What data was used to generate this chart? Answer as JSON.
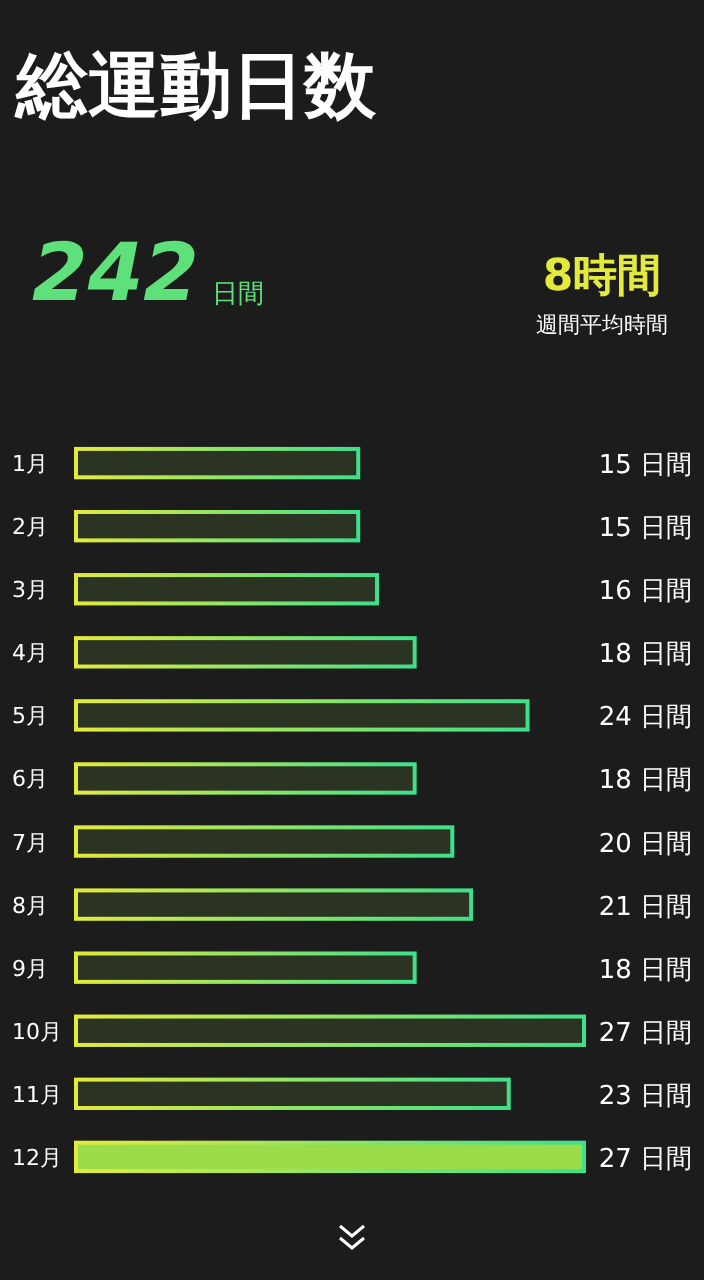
{
  "chart_data": {
    "type": "bar",
    "orientation": "horizontal",
    "title": "総運動日数",
    "annotations": [
      "242",
      "日間",
      "8時間",
      "週間平均時間"
    ],
    "categories": [
      "1月",
      "2月",
      "3月",
      "4月",
      "5月",
      "6月",
      "7月",
      "8月",
      "9月",
      "10月",
      "11月",
      "12月"
    ],
    "values": [
      15,
      15,
      16,
      18,
      24,
      18,
      20,
      21,
      18,
      27,
      23,
      27
    ],
    "value_labels": [
      "15 日間",
      "15 日間",
      "16 日間",
      "18 日間",
      "24 日間",
      "18 日間",
      "20 日間",
      "21 日間",
      "18 日間",
      "27 日間",
      "23 日間",
      "27 日間"
    ],
    "colors": [
      "#2b3322",
      "#2b3322",
      "#2b3322",
      "#2b3322",
      "#2b3322",
      "#2b3322",
      "#2b3322",
      "#2b3322",
      "#2b3322",
      "#2b3322",
      "#2b3322",
      "#9bdc4a"
    ]
  }
}
